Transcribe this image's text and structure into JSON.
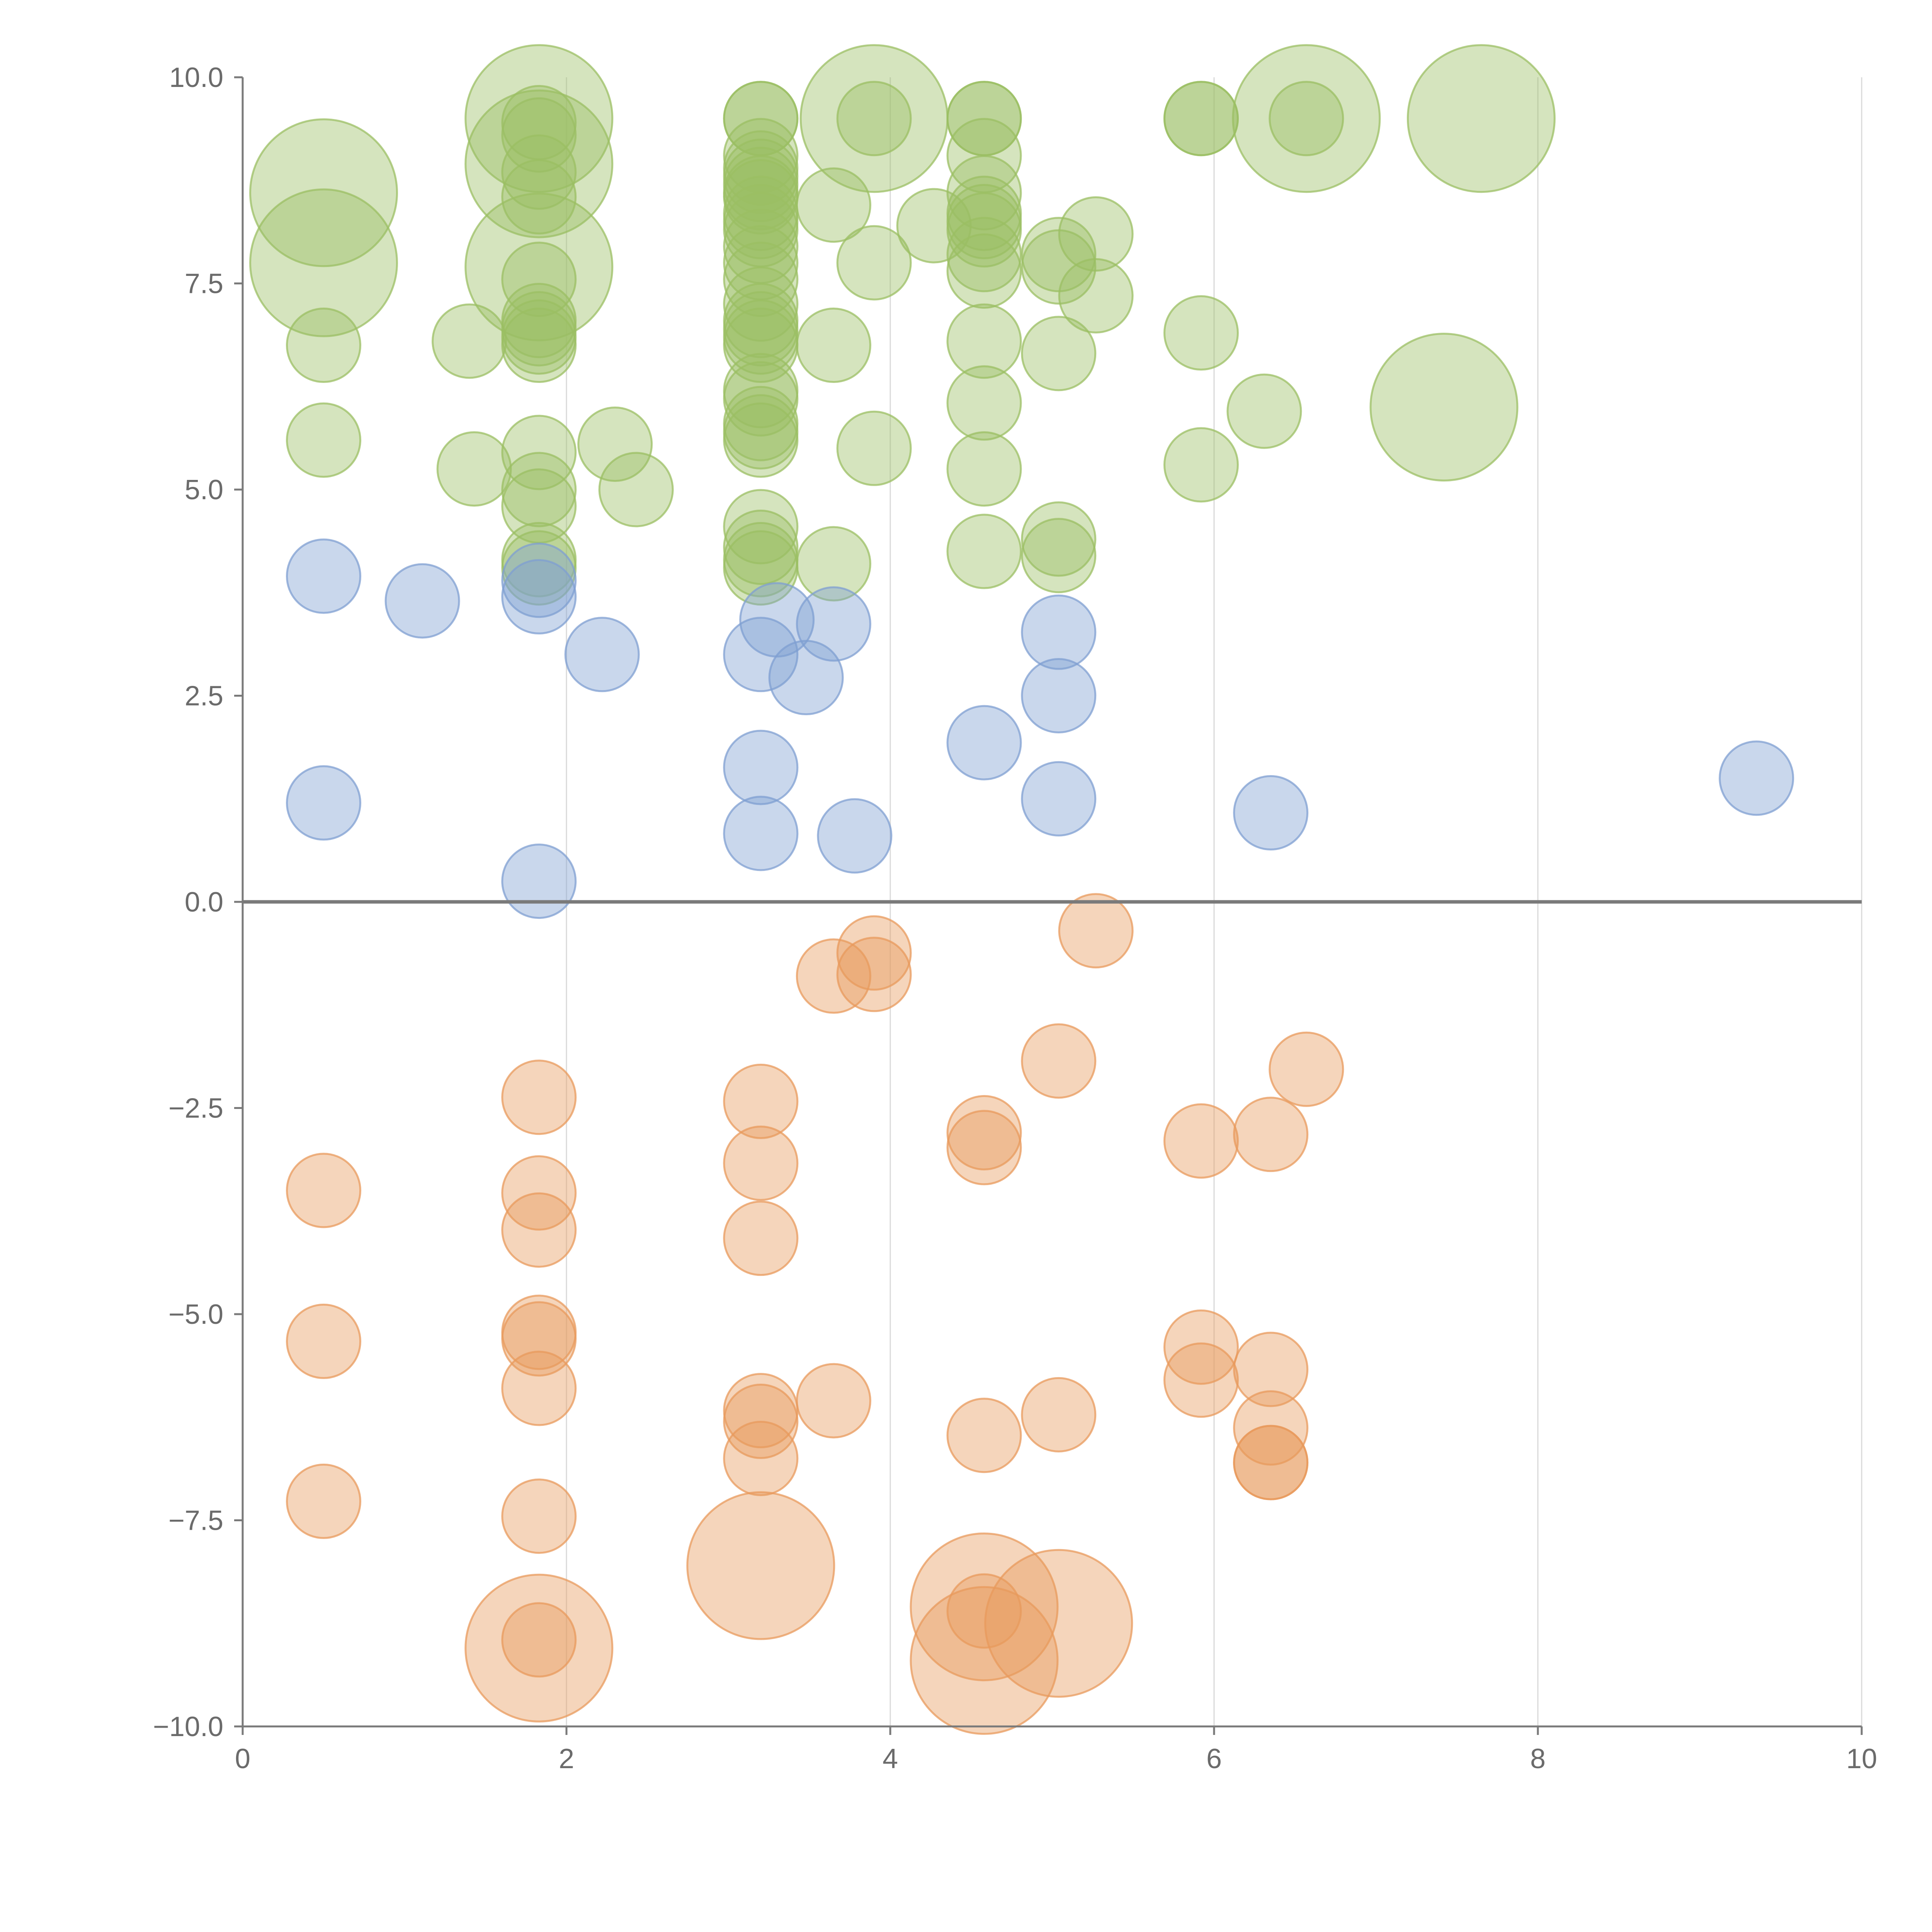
{
  "chart_data": {
    "type": "scatter",
    "title": "",
    "xlabel": "",
    "ylabel": "",
    "xlim": [
      0,
      10
    ],
    "ylim": [
      -10,
      10
    ],
    "x_ticks": [
      "0",
      "2",
      "4",
      "6",
      "8",
      "10"
    ],
    "y_ticks": [
      "10.0",
      "7.5",
      "5.0",
      "2.5",
      "0.0",
      "−2.5",
      "−5.0",
      "−7.5",
      "−10.0"
    ],
    "grid": "vertical",
    "legend": "none",
    "colors": {
      "green": "#9bbf63",
      "blue": "#7f9fd1",
      "orange": "#e89a5c",
      "axis": "#7a7a7a",
      "grid": "#d9d9d9",
      "tick_text": "#6b6b6b"
    },
    "series": [
      {
        "name": "green",
        "color": "#9bbf63",
        "points": [
          {
            "x": 0.5,
            "y": 8.6,
            "s": 3
          },
          {
            "x": 0.5,
            "y": 7.75,
            "s": 3
          },
          {
            "x": 0.5,
            "y": 6.75,
            "s": 1
          },
          {
            "x": 0.5,
            "y": 5.6,
            "s": 1
          },
          {
            "x": 1.4,
            "y": 6.8,
            "s": 1
          },
          {
            "x": 1.43,
            "y": 5.25,
            "s": 1
          },
          {
            "x": 1.83,
            "y": 9.5,
            "s": 3
          },
          {
            "x": 1.83,
            "y": 9.45,
            "s": 1
          },
          {
            "x": 1.83,
            "y": 9.3,
            "s": 1
          },
          {
            "x": 1.83,
            "y": 8.95,
            "s": 3
          },
          {
            "x": 1.83,
            "y": 8.85,
            "s": 1
          },
          {
            "x": 1.83,
            "y": 8.55,
            "s": 1
          },
          {
            "x": 1.83,
            "y": 7.7,
            "s": 3
          },
          {
            "x": 1.83,
            "y": 7.55,
            "s": 1
          },
          {
            "x": 1.83,
            "y": 7.05,
            "s": 1
          },
          {
            "x": 1.83,
            "y": 6.95,
            "s": 1
          },
          {
            "x": 1.83,
            "y": 6.85,
            "s": 1
          },
          {
            "x": 1.83,
            "y": 6.75,
            "s": 1
          },
          {
            "x": 1.83,
            "y": 5.45,
            "s": 1
          },
          {
            "x": 1.83,
            "y": 5.0,
            "s": 1
          },
          {
            "x": 1.83,
            "y": 4.8,
            "s": 1
          },
          {
            "x": 1.83,
            "y": 4.15,
            "s": 1
          },
          {
            "x": 1.83,
            "y": 4.05,
            "s": 1
          },
          {
            "x": 2.3,
            "y": 5.55,
            "s": 1
          },
          {
            "x": 2.43,
            "y": 5.0,
            "s": 1
          },
          {
            "x": 3.2,
            "y": 9.5,
            "s": 1
          },
          {
            "x": 3.2,
            "y": 9.5,
            "s": 1
          },
          {
            "x": 3.2,
            "y": 9.05,
            "s": 1
          },
          {
            "x": 3.2,
            "y": 8.9,
            "s": 1
          },
          {
            "x": 3.2,
            "y": 8.8,
            "s": 1
          },
          {
            "x": 3.2,
            "y": 8.7,
            "s": 1
          },
          {
            "x": 3.2,
            "y": 8.6,
            "s": 1
          },
          {
            "x": 3.2,
            "y": 8.55,
            "s": 1
          },
          {
            "x": 3.2,
            "y": 8.35,
            "s": 1
          },
          {
            "x": 3.2,
            "y": 8.25,
            "s": 1
          },
          {
            "x": 3.2,
            "y": 8.15,
            "s": 1
          },
          {
            "x": 3.2,
            "y": 7.95,
            "s": 1
          },
          {
            "x": 3.2,
            "y": 7.75,
            "s": 1
          },
          {
            "x": 3.2,
            "y": 7.55,
            "s": 1
          },
          {
            "x": 3.2,
            "y": 7.25,
            "s": 1
          },
          {
            "x": 3.2,
            "y": 7.05,
            "s": 1
          },
          {
            "x": 3.2,
            "y": 6.95,
            "s": 1
          },
          {
            "x": 3.2,
            "y": 6.85,
            "s": 1
          },
          {
            "x": 3.2,
            "y": 6.75,
            "s": 1
          },
          {
            "x": 3.2,
            "y": 6.2,
            "s": 1
          },
          {
            "x": 3.2,
            "y": 6.1,
            "s": 1
          },
          {
            "x": 3.2,
            "y": 5.8,
            "s": 1
          },
          {
            "x": 3.2,
            "y": 5.7,
            "s": 1
          },
          {
            "x": 3.2,
            "y": 5.6,
            "s": 1
          },
          {
            "x": 3.2,
            "y": 4.55,
            "s": 1
          },
          {
            "x": 3.2,
            "y": 4.3,
            "s": 1
          },
          {
            "x": 3.2,
            "y": 4.15,
            "s": 1
          },
          {
            "x": 3.2,
            "y": 4.05,
            "s": 1
          },
          {
            "x": 3.65,
            "y": 8.45,
            "s": 1
          },
          {
            "x": 3.65,
            "y": 6.75,
            "s": 1
          },
          {
            "x": 3.65,
            "y": 4.1,
            "s": 1
          },
          {
            "x": 3.9,
            "y": 9.5,
            "s": 3
          },
          {
            "x": 3.9,
            "y": 9.5,
            "s": 1
          },
          {
            "x": 3.9,
            "y": 7.75,
            "s": 1
          },
          {
            "x": 3.9,
            "y": 5.5,
            "s": 1
          },
          {
            "x": 4.27,
            "y": 8.2,
            "s": 1
          },
          {
            "x": 4.58,
            "y": 9.5,
            "s": 1
          },
          {
            "x": 4.58,
            "y": 9.5,
            "s": 1
          },
          {
            "x": 4.58,
            "y": 9.05,
            "s": 1
          },
          {
            "x": 4.58,
            "y": 8.6,
            "s": 1
          },
          {
            "x": 4.58,
            "y": 8.35,
            "s": 1
          },
          {
            "x": 4.58,
            "y": 8.25,
            "s": 1
          },
          {
            "x": 4.58,
            "y": 8.15,
            "s": 1
          },
          {
            "x": 4.58,
            "y": 7.85,
            "s": 1
          },
          {
            "x": 4.58,
            "y": 7.65,
            "s": 1
          },
          {
            "x": 4.58,
            "y": 6.8,
            "s": 1
          },
          {
            "x": 4.58,
            "y": 6.05,
            "s": 1
          },
          {
            "x": 4.58,
            "y": 5.25,
            "s": 1
          },
          {
            "x": 4.58,
            "y": 4.25,
            "s": 1
          },
          {
            "x": 5.04,
            "y": 7.85,
            "s": 1
          },
          {
            "x": 5.04,
            "y": 7.7,
            "s": 1
          },
          {
            "x": 5.04,
            "y": 6.65,
            "s": 1
          },
          {
            "x": 5.04,
            "y": 4.4,
            "s": 1
          },
          {
            "x": 5.04,
            "y": 4.2,
            "s": 1
          },
          {
            "x": 5.27,
            "y": 8.1,
            "s": 1
          },
          {
            "x": 5.27,
            "y": 7.35,
            "s": 1
          },
          {
            "x": 5.92,
            "y": 9.5,
            "s": 1
          },
          {
            "x": 5.92,
            "y": 9.5,
            "s": 1
          },
          {
            "x": 5.92,
            "y": 6.9,
            "s": 1
          },
          {
            "x": 5.92,
            "y": 5.3,
            "s": 1
          },
          {
            "x": 6.31,
            "y": 5.95,
            "s": 1
          },
          {
            "x": 6.57,
            "y": 9.5,
            "s": 3
          },
          {
            "x": 6.57,
            "y": 9.5,
            "s": 1
          },
          {
            "x": 7.42,
            "y": 6.0,
            "s": 3
          },
          {
            "x": 7.65,
            "y": 9.5,
            "s": 3
          }
        ]
      },
      {
        "name": "blue",
        "color": "#7f9fd1",
        "points": [
          {
            "x": 0.5,
            "y": 3.95,
            "s": 1
          },
          {
            "x": 0.5,
            "y": 1.2,
            "s": 1
          },
          {
            "x": 1.11,
            "y": 3.65,
            "s": 1
          },
          {
            "x": 1.83,
            "y": 3.9,
            "s": 1
          },
          {
            "x": 1.83,
            "y": 3.7,
            "s": 1
          },
          {
            "x": 1.83,
            "y": 0.25,
            "s": 1
          },
          {
            "x": 2.22,
            "y": 3.0,
            "s": 1
          },
          {
            "x": 3.2,
            "y": 3.0,
            "s": 1
          },
          {
            "x": 3.2,
            "y": 1.63,
            "s": 1
          },
          {
            "x": 3.2,
            "y": 0.83,
            "s": 1
          },
          {
            "x": 3.3,
            "y": 3.42,
            "s": 1
          },
          {
            "x": 3.48,
            "y": 2.72,
            "s": 1
          },
          {
            "x": 3.65,
            "y": 3.37,
            "s": 1
          },
          {
            "x": 3.78,
            "y": 0.8,
            "s": 1
          },
          {
            "x": 4.58,
            "y": 1.93,
            "s": 1
          },
          {
            "x": 5.04,
            "y": 3.27,
            "s": 1
          },
          {
            "x": 5.04,
            "y": 2.5,
            "s": 1
          },
          {
            "x": 5.04,
            "y": 1.25,
            "s": 1
          },
          {
            "x": 6.35,
            "y": 1.08,
            "s": 1
          },
          {
            "x": 9.35,
            "y": 1.5,
            "s": 1
          }
        ]
      },
      {
        "name": "orange",
        "color": "#e89a5c",
        "points": [
          {
            "x": 0.5,
            "y": -3.5,
            "s": 1
          },
          {
            "x": 0.5,
            "y": -5.33,
            "s": 1
          },
          {
            "x": 0.5,
            "y": -7.27,
            "s": 1
          },
          {
            "x": 1.83,
            "y": -2.37,
            "s": 1
          },
          {
            "x": 1.83,
            "y": -3.53,
            "s": 1
          },
          {
            "x": 1.83,
            "y": -3.98,
            "s": 1
          },
          {
            "x": 1.83,
            "y": -5.22,
            "s": 1
          },
          {
            "x": 1.83,
            "y": -5.3,
            "s": 1
          },
          {
            "x": 1.83,
            "y": -5.9,
            "s": 1
          },
          {
            "x": 1.83,
            "y": -7.45,
            "s": 1
          },
          {
            "x": 1.83,
            "y": -9.05,
            "s": 3
          },
          {
            "x": 1.83,
            "y": -8.95,
            "s": 1
          },
          {
            "x": 3.2,
            "y": -2.42,
            "s": 1
          },
          {
            "x": 3.2,
            "y": -3.17,
            "s": 1
          },
          {
            "x": 3.2,
            "y": -4.08,
            "s": 1
          },
          {
            "x": 3.2,
            "y": -6.17,
            "s": 1
          },
          {
            "x": 3.2,
            "y": -6.3,
            "s": 1
          },
          {
            "x": 3.2,
            "y": -6.75,
            "s": 1
          },
          {
            "x": 3.2,
            "y": -8.05,
            "s": 3
          },
          {
            "x": 3.65,
            "y": -0.9,
            "s": 1
          },
          {
            "x": 3.65,
            "y": -6.05,
            "s": 1
          },
          {
            "x": 3.9,
            "y": -0.62,
            "s": 1
          },
          {
            "x": 3.9,
            "y": -0.88,
            "s": 1
          },
          {
            "x": 4.58,
            "y": -2.8,
            "s": 1
          },
          {
            "x": 4.58,
            "y": -2.98,
            "s": 1
          },
          {
            "x": 4.58,
            "y": -6.47,
            "s": 1
          },
          {
            "x": 4.58,
            "y": -8.55,
            "s": 3
          },
          {
            "x": 4.58,
            "y": -8.6,
            "s": 1
          },
          {
            "x": 4.58,
            "y": -9.2,
            "s": 3
          },
          {
            "x": 5.04,
            "y": -1.93,
            "s": 1
          },
          {
            "x": 5.04,
            "y": -6.22,
            "s": 1
          },
          {
            "x": 5.04,
            "y": -8.75,
            "s": 3
          },
          {
            "x": 5.27,
            "y": -0.35,
            "s": 1
          },
          {
            "x": 5.92,
            "y": -2.9,
            "s": 1
          },
          {
            "x": 5.92,
            "y": -5.4,
            "s": 1
          },
          {
            "x": 5.92,
            "y": -5.8,
            "s": 1
          },
          {
            "x": 6.35,
            "y": -2.82,
            "s": 1
          },
          {
            "x": 6.35,
            "y": -5.67,
            "s": 1
          },
          {
            "x": 6.35,
            "y": -6.38,
            "s": 1
          },
          {
            "x": 6.35,
            "y": -6.8,
            "s": 1
          },
          {
            "x": 6.35,
            "y": -6.8,
            "s": 1
          },
          {
            "x": 6.57,
            "y": -2.03,
            "s": 1
          }
        ]
      }
    ]
  }
}
